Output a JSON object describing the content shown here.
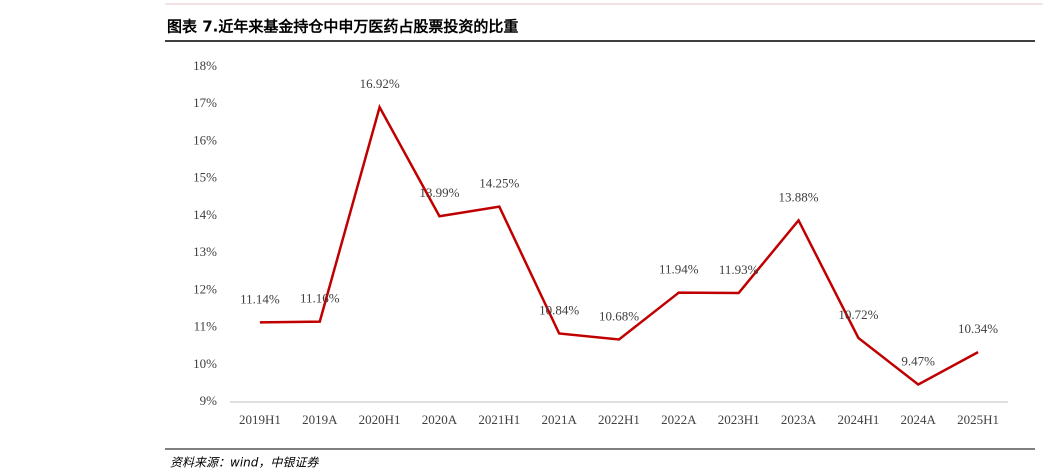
{
  "chart_data": {
    "type": "line",
    "title": "图表 7.近年来基金持仓中申万医药占股票投资的比重",
    "source": "资料来源：wind，中银证券",
    "categories": [
      "2019H1",
      "2019A",
      "2020H1",
      "2020A",
      "2021H1",
      "2021A",
      "2022H1",
      "2022A",
      "2023H1",
      "2023A",
      "2024H1",
      "2024A",
      "2025H1"
    ],
    "values": [
      11.14,
      11.16,
      16.92,
      13.99,
      14.25,
      10.84,
      10.68,
      11.94,
      11.93,
      13.88,
      10.72,
      9.47,
      10.34
    ],
    "value_labels": [
      "11.14%",
      "11.16%",
      "16.92%",
      "13.99%",
      "14.25%",
      "10.84%",
      "10.68%",
      "11.94%",
      "11.93%",
      "13.88%",
      "10.72%",
      "9.47%",
      "10.34%"
    ],
    "color": "#c00000",
    "ylim": [
      9,
      18
    ],
    "yticks": [
      {
        "value": 9,
        "label": "9%"
      },
      {
        "value": 10,
        "label": "10%"
      },
      {
        "value": 11,
        "label": "11%"
      },
      {
        "value": 12,
        "label": "12%"
      },
      {
        "value": 13,
        "label": "13%"
      },
      {
        "value": 14,
        "label": "14%"
      },
      {
        "value": 15,
        "label": "15%"
      },
      {
        "value": 16,
        "label": "16%"
      },
      {
        "value": 17,
        "label": "17%"
      },
      {
        "value": 18,
        "label": "18%"
      }
    ],
    "grid": false
  }
}
